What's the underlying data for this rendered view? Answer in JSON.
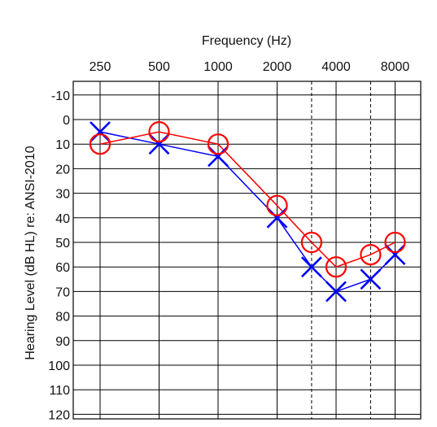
{
  "chart_data": {
    "type": "line",
    "title": "",
    "xlabel": "Frequency (Hz)",
    "ylabel": "Hearing Level (dB HL) re: ANSI-2010",
    "x_ticks": [
      "250",
      "500",
      "1000",
      "2000",
      "4000",
      "8000"
    ],
    "x_scale": "log2",
    "x_range": [
      250,
      8000
    ],
    "dashed_frequencies": [
      3000,
      6000
    ],
    "y_ticks": [
      "-10",
      "0",
      "10",
      "20",
      "30",
      "40",
      "50",
      "60",
      "70",
      "80",
      "90",
      "100",
      "110",
      "120"
    ],
    "y_range": [
      -10,
      120
    ],
    "y_inverted": true,
    "grid": true,
    "series": [
      {
        "marker": "circle",
        "color": "#ff0000",
        "x": [
          250,
          500,
          1000,
          2000,
          3000,
          4000,
          6000,
          8000
        ],
        "y": [
          10,
          5,
          10,
          35,
          50,
          60,
          55,
          50
        ]
      },
      {
        "marker": "cross",
        "color": "#0000ff",
        "x": [
          250,
          500,
          1000,
          2000,
          3000,
          4000,
          6000,
          8000
        ],
        "y": [
          5,
          10,
          15,
          40,
          60,
          70,
          65,
          55
        ]
      }
    ]
  }
}
